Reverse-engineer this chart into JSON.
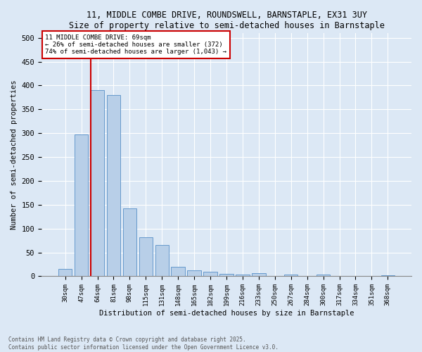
{
  "title": "11, MIDDLE COMBE DRIVE, ROUNDSWELL, BARNSTAPLE, EX31 3UY",
  "subtitle": "Size of property relative to semi-detached houses in Barnstaple",
  "xlabel": "Distribution of semi-detached houses by size in Barnstaple",
  "ylabel": "Number of semi-detached properties",
  "categories": [
    "30sqm",
    "47sqm",
    "64sqm",
    "81sqm",
    "98sqm",
    "115sqm",
    "131sqm",
    "148sqm",
    "165sqm",
    "182sqm",
    "199sqm",
    "216sqm",
    "233sqm",
    "250sqm",
    "267sqm",
    "284sqm",
    "300sqm",
    "317sqm",
    "334sqm",
    "351sqm",
    "368sqm"
  ],
  "values": [
    15,
    297,
    390,
    380,
    143,
    82,
    65,
    20,
    12,
    9,
    5,
    4,
    6,
    0,
    3,
    0,
    3,
    0,
    0,
    0,
    2
  ],
  "bar_color": "#b8cfe8",
  "bar_edge_color": "#6699cc",
  "annotation_title": "11 MIDDLE COMBE DRIVE: 69sqm",
  "annotation_line1": "← 26% of semi-detached houses are smaller (372)",
  "annotation_line2": "74% of semi-detached houses are larger (1,043) →",
  "annotation_box_color": "#cc0000",
  "footer1": "Contains HM Land Registry data © Crown copyright and database right 2025.",
  "footer2": "Contains public sector information licensed under the Open Government Licence v3.0.",
  "ylim": [
    0,
    510
  ],
  "yticks": [
    0,
    50,
    100,
    150,
    200,
    250,
    300,
    350,
    400,
    450,
    500
  ],
  "fig_bg_color": "#dce8f5",
  "plot_bg_color": "#dce8f5"
}
